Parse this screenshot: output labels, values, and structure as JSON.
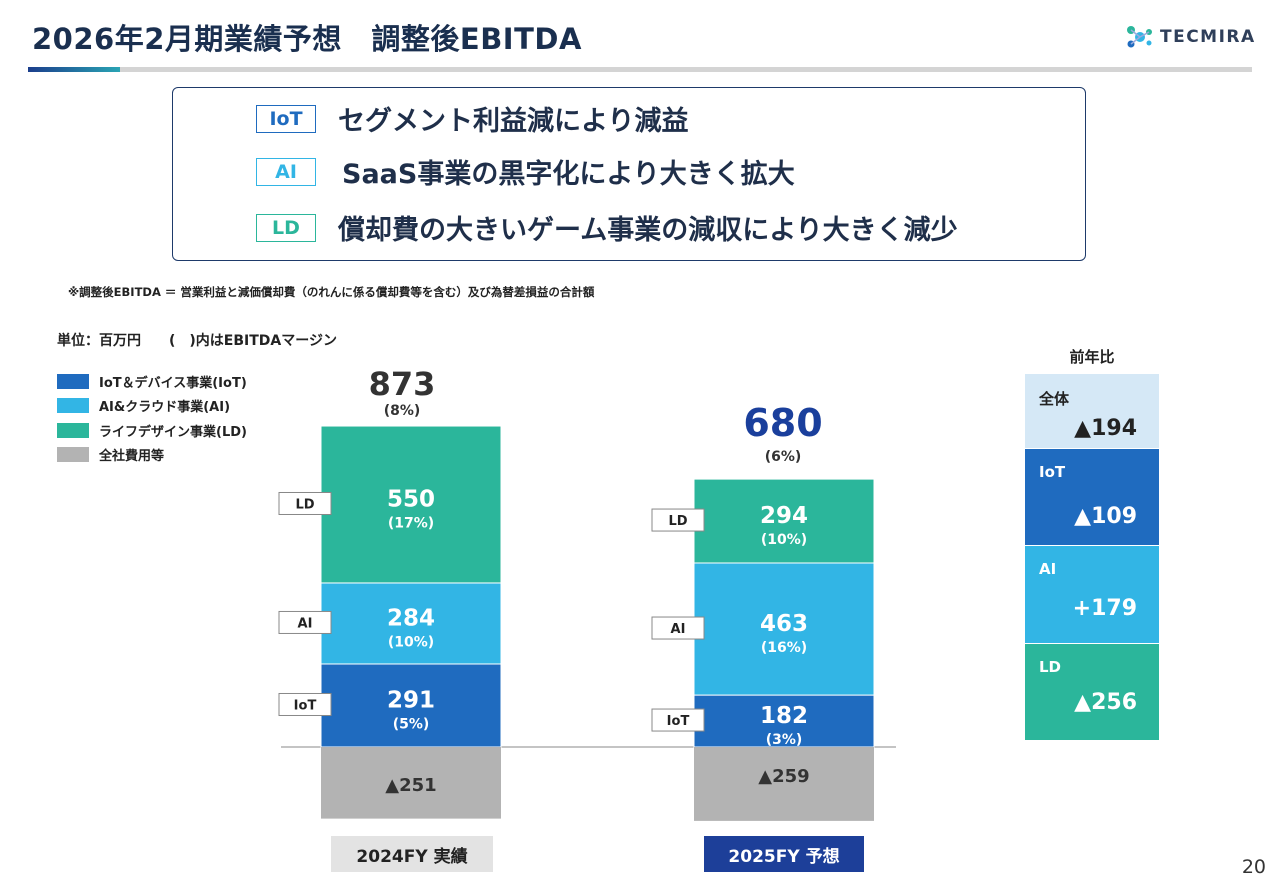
{
  "header": {
    "title": "2026年2月期業績予想　調整後EBITDA",
    "logo_text": "TECMIRA"
  },
  "summary": [
    {
      "tag": "IoT",
      "text": "セグメント利益減により減益",
      "color": "#1f6bbf"
    },
    {
      "tag": "AI",
      "text": "SaaS事業の黒字化により大きく拡大",
      "color": "#32b5e5"
    },
    {
      "tag": "LD",
      "text": "償却費の大きいゲーム事業の減収により大きく減少",
      "color": "#2bb69b"
    }
  ],
  "note": "※調整後EBITDA ＝ 営業利益と減価償却費（のれんに係る償却費等を含む）及び為替差損益の合計額",
  "unit_label": "単位：百万円　　(　)内はEBITDAマージン",
  "legend": [
    {
      "label": "IoT＆デバイス事業(IoT)",
      "color": "#1f6bbf"
    },
    {
      "label": "AI&クラウド事業(AI)",
      "color": "#32b5e5"
    },
    {
      "label": "ライフデザイン事業(LD)",
      "color": "#2bb69b"
    },
    {
      "label": "全社費用等",
      "color": "#b3b3b3"
    }
  ],
  "chart_data": {
    "type": "bar",
    "stacked": true,
    "categories": [
      "2024FY 実績",
      "2025FY 予想"
    ],
    "series": [
      {
        "name": "IoT",
        "values": [
          291,
          182
        ],
        "labels": [
          "291",
          "182"
        ],
        "margins": [
          "(5%)",
          "(3%)"
        ],
        "color": "#1f6bbf"
      },
      {
        "name": "AI",
        "values": [
          284,
          463
        ],
        "labels": [
          "284",
          "463"
        ],
        "margins": [
          "(10%)",
          "(16%)"
        ],
        "color": "#32b5e5"
      },
      {
        "name": "LD",
        "values": [
          550,
          294
        ],
        "labels": [
          "550",
          "294"
        ],
        "margins": [
          "(17%)",
          "(10%)"
        ],
        "color": "#2bb69b"
      },
      {
        "name": "全社費用等",
        "values": [
          -251,
          -259
        ],
        "labels": [
          "▲251",
          "▲259"
        ],
        "color": "#b3b3b3"
      }
    ],
    "totals": [
      873,
      680
    ],
    "total_margins": [
      "(8%)",
      "(6%)"
    ],
    "total_colors": [
      "#333333",
      "#1a3f9c"
    ],
    "category_styles": [
      {
        "bg": "#e3e3e3",
        "color": "#222222"
      },
      {
        "bg": "#1d3f99",
        "color": "#ffffff"
      }
    ]
  },
  "yoy": {
    "title": "前年比",
    "items": [
      {
        "label": "全体",
        "value": "▲194",
        "bg": "#d5e8f6",
        "fg": "#222222"
      },
      {
        "label": "IoT",
        "value": "▲109",
        "bg": "#1f6bbf",
        "fg": "#ffffff"
      },
      {
        "label": "AI",
        "value": "+179",
        "bg": "#32b5e5",
        "fg": "#ffffff"
      },
      {
        "label": "LD",
        "value": "▲256",
        "bg": "#2bb69b",
        "fg": "#ffffff"
      }
    ]
  },
  "page_number": "20"
}
